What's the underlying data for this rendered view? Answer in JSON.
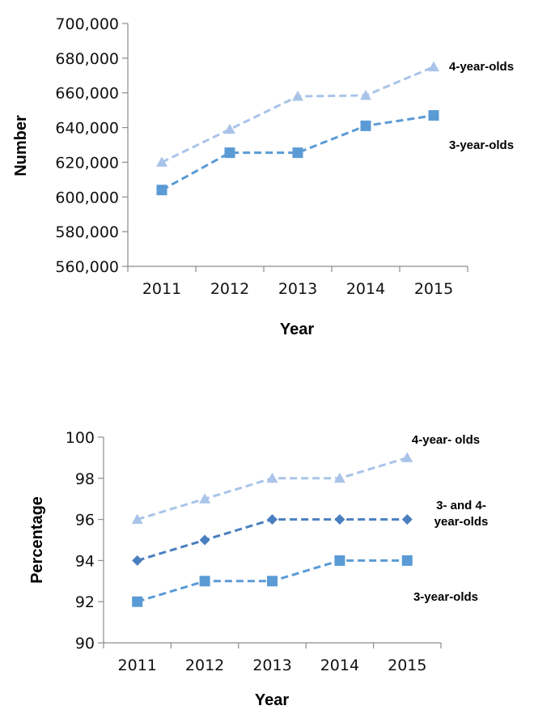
{
  "colors": {
    "four_year_olds": "#a9c4e8",
    "three_year_olds": "#5b9bd5",
    "three_and_four_year_olds": "#4a7fbf",
    "axis": "#8c8c8c"
  },
  "chart_data": [
    {
      "type": "line",
      "title": "",
      "xlabel": "Year",
      "ylabel": "Number",
      "categories": [
        "2011",
        "2012",
        "2013",
        "2014",
        "2015"
      ],
      "ylim": [
        560000,
        700000
      ],
      "yticks": [
        "560,000",
        "580,000",
        "600,000",
        "620,000",
        "640,000",
        "660,000",
        "680,000",
        "700,000"
      ],
      "grid": false,
      "series": [
        {
          "name": "4-year-olds",
          "marker": "triangle",
          "values": [
            620000,
            639000,
            658000,
            658500,
            675000
          ]
        },
        {
          "name": "3-year-olds",
          "marker": "square",
          "values": [
            604000,
            625500,
            625500,
            641000,
            647000
          ]
        }
      ]
    },
    {
      "type": "line",
      "title": "",
      "xlabel": "Year",
      "ylabel": "Percentage",
      "categories": [
        "2011",
        "2012",
        "2013",
        "2014",
        "2015"
      ],
      "ylim": [
        90,
        100
      ],
      "yticks": [
        "90",
        "92",
        "94",
        "96",
        "98",
        "100"
      ],
      "grid": false,
      "series": [
        {
          "name": "4-year- olds",
          "marker": "triangle",
          "values": [
            96,
            97,
            98,
            98,
            99
          ]
        },
        {
          "name": "3- and 4- year-olds",
          "name_lines": [
            "3- and 4-",
            "year-olds"
          ],
          "marker": "diamond",
          "values": [
            94,
            95,
            96,
            96,
            96
          ]
        },
        {
          "name": "3-year-olds",
          "marker": "square",
          "values": [
            92,
            93,
            93,
            94,
            94
          ]
        }
      ]
    }
  ]
}
